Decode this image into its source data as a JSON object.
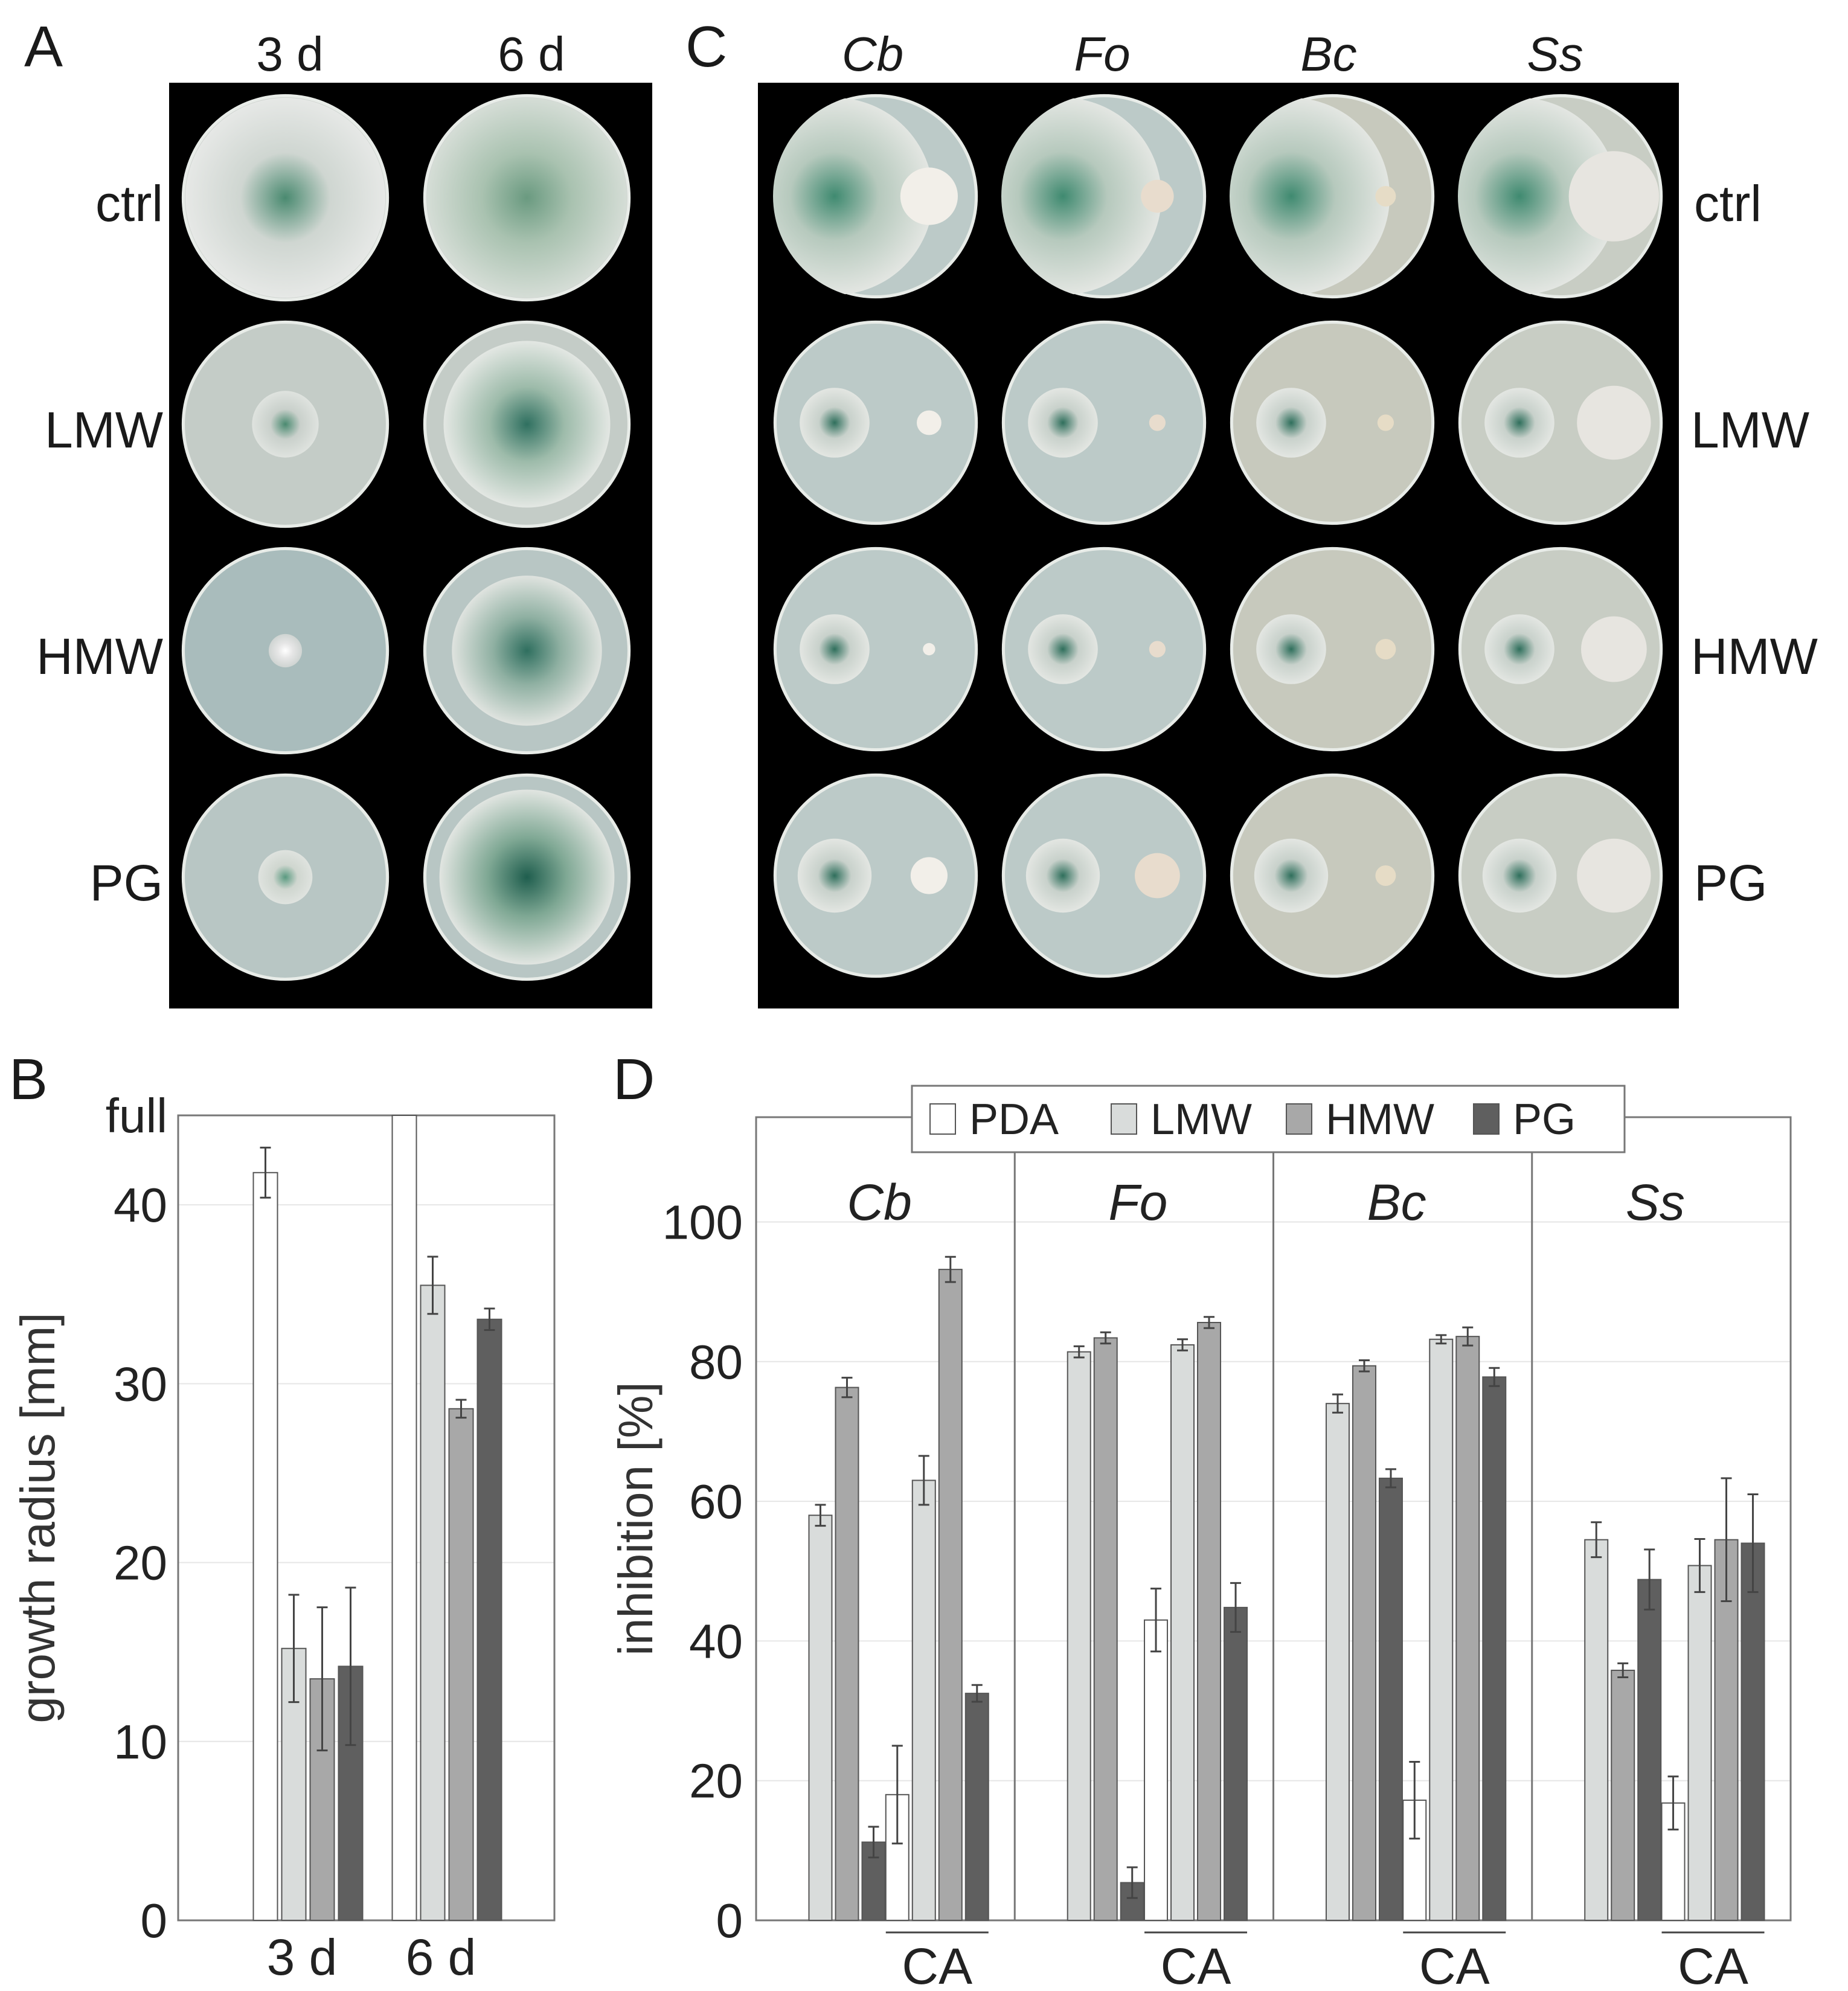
{
  "panel_letters": {
    "a": "A",
    "b": "B",
    "c": "C",
    "d": "D"
  },
  "panel_a": {
    "columns": [
      "3 d",
      "6 d"
    ],
    "rows": [
      "ctrl",
      "LMW",
      "HMW",
      "PG"
    ]
  },
  "panel_c": {
    "columns": [
      "Cb",
      "Fo",
      "Bc",
      "Ss"
    ],
    "rows": [
      "ctrl",
      "LMW",
      "HMW",
      "PG"
    ]
  },
  "colors": {
    "PDA": "#ffffff",
    "LMW": "#d9dcdb",
    "HMW": "#a8a8a8",
    "PG": "#5f5f5f",
    "colony_green": "#3f7d66",
    "agar": "#c9cfc9"
  },
  "chart_data": [
    {
      "type": "bar",
      "panel": "B",
      "ylabel": "growth radius [mm]",
      "ylim": [
        0,
        45
      ],
      "yticks": [
        0,
        10,
        20,
        30,
        40
      ],
      "ytick_extra": "full",
      "grid": true,
      "legend": "none",
      "groups": [
        "3 d",
        "6 d"
      ],
      "series_names": [
        "PDA",
        "LMW",
        "HMW",
        "PG"
      ],
      "values": {
        "3 d": [
          {
            "v": 41.8,
            "e": 1.4
          },
          {
            "v": 15.2,
            "e": 3.0
          },
          {
            "v": 13.5,
            "e": 4.0
          },
          {
            "v": 14.2,
            "e": 4.4
          }
        ],
        "6 d": [
          {
            "v": "full",
            "e": 0
          },
          {
            "v": 35.5,
            "e": 1.6
          },
          {
            "v": 28.6,
            "e": 0.5
          },
          {
            "v": 33.6,
            "e": 0.6
          }
        ]
      }
    },
    {
      "type": "bar",
      "panel": "D",
      "ylabel": "inhibition [%]",
      "ylim": [
        0,
        115
      ],
      "yticks": [
        0,
        20,
        40,
        60,
        80,
        100
      ],
      "grid": true,
      "legend": "top-center",
      "legend_labels": [
        "PDA",
        "LMW",
        "HMW",
        "PG"
      ],
      "groups": [
        "Cb",
        "Fo",
        "Bc",
        "Ss"
      ],
      "subgroup_label": "CA",
      "series_names": [
        "PDA",
        "LMW",
        "HMW",
        "PG"
      ],
      "values": {
        "Cb": {
          "plain": [
            {
              "v": 0,
              "e": 0
            },
            {
              "v": 58,
              "e": 1.5
            },
            {
              "v": 76.3,
              "e": 1.4
            },
            {
              "v": 11.2,
              "e": 2.2
            }
          ],
          "CA": [
            {
              "v": 18,
              "e": 7.0
            },
            {
              "v": 63,
              "e": 3.5
            },
            {
              "v": 93.2,
              "e": 1.8
            },
            {
              "v": 32.5,
              "e": 1.2
            }
          ]
        },
        "Fo": {
          "plain": [
            {
              "v": 0,
              "e": 0
            },
            {
              "v": 81.4,
              "e": 0.8
            },
            {
              "v": 83.4,
              "e": 0.8
            },
            {
              "v": 5.4,
              "e": 2.2
            }
          ],
          "CA": [
            {
              "v": 43,
              "e": 4.5
            },
            {
              "v": 82.4,
              "e": 0.8
            },
            {
              "v": 85.6,
              "e": 0.8
            },
            {
              "v": 44.8,
              "e": 3.5
            }
          ]
        },
        "Bc": {
          "plain": [
            {
              "v": 0,
              "e": 0
            },
            {
              "v": 74,
              "e": 1.3
            },
            {
              "v": 79.4,
              "e": 0.8
            },
            {
              "v": 63.3,
              "e": 1.3
            }
          ],
          "CA": [
            {
              "v": 17.2,
              "e": 5.5
            },
            {
              "v": 83.2,
              "e": 0.6
            },
            {
              "v": 83.6,
              "e": 1.3
            },
            {
              "v": 77.8,
              "e": 1.3
            }
          ]
        },
        "Ss": {
          "plain": [
            {
              "v": 0,
              "e": 0
            },
            {
              "v": 54.5,
              "e": 2.5
            },
            {
              "v": 35.8,
              "e": 1.0
            },
            {
              "v": 48.8,
              "e": 4.3
            }
          ],
          "CA": [
            {
              "v": 16.8,
              "e": 3.8
            },
            {
              "v": 50.8,
              "e": 3.8
            },
            {
              "v": 54.5,
              "e": 8.8
            },
            {
              "v": 54,
              "e": 7.0
            }
          ]
        }
      }
    }
  ]
}
